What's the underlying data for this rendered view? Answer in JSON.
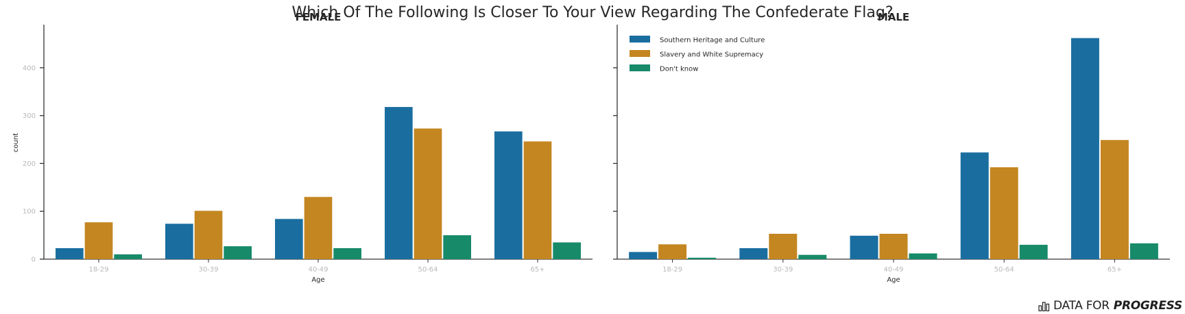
{
  "chart_data": {
    "type": "bar",
    "title": "Which Of The Following Is Closer To Your View Regarding The Confederate Flag?",
    "xlabel": "Age",
    "ylabel": "count",
    "ylim": [
      0,
      490
    ],
    "yticks": [
      0,
      100,
      200,
      300,
      400
    ],
    "categories": [
      "18-29",
      "30-39",
      "40-49",
      "50-64",
      "65+"
    ],
    "legend": {
      "placement": "top-left of right panel",
      "colors": [
        "#1a6e9f",
        "#c48620",
        "#178a69"
      ]
    },
    "grid": false,
    "panels": [
      {
        "title": "FEMALE",
        "series": [
          {
            "name": "Southern Heritage and Culture",
            "values": [
              23,
              74,
              84,
              318,
              267
            ]
          },
          {
            "name": "Slavery and White Supremacy",
            "values": [
              77,
              101,
              130,
              273,
              246
            ]
          },
          {
            "name": "Don't know",
            "values": [
              10,
              27,
              23,
              50,
              35
            ]
          }
        ]
      },
      {
        "title": "MALE",
        "series": [
          {
            "name": "Southern Heritage and Culture",
            "values": [
              15,
              23,
              49,
              223,
              462
            ]
          },
          {
            "name": "Slavery and White Supremacy",
            "values": [
              31,
              53,
              53,
              192,
              249
            ]
          },
          {
            "name": "Don't know",
            "values": [
              3,
              9,
              12,
              30,
              33
            ]
          }
        ]
      }
    ]
  },
  "branding": {
    "part1": "DATA FOR",
    "part2": "PROGRESS",
    "icon": "bar-chart-icon"
  }
}
